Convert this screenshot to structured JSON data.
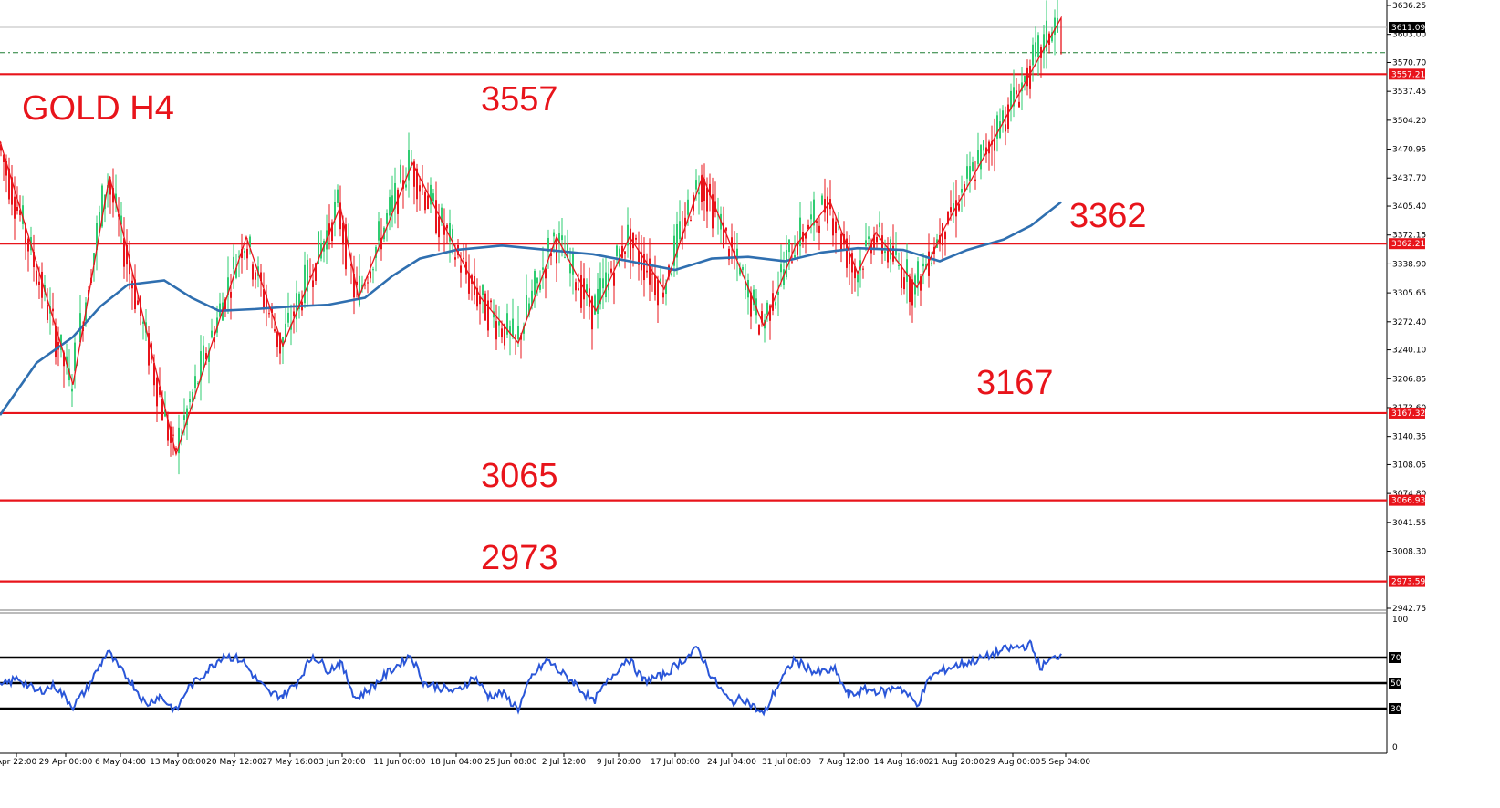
{
  "chart_data": [
    {
      "type": "line",
      "panel": "price",
      "title": "GOLD H4",
      "y_axis": {
        "range": [
          2930,
          3640
        ],
        "tick_labels": [
          "3636.25",
          "3603.00",
          "3570.70",
          "3537.45",
          "3504.20",
          "3470.95",
          "3437.70",
          "3405.40",
          "3372.15",
          "3338.90",
          "3305.65",
          "3272.40",
          "3240.10",
          "3206.85",
          "3173.60",
          "3140.35",
          "3108.05",
          "3074.80",
          "3041.55",
          "3008.30",
          "2942.75"
        ],
        "tick_values": [
          3636.25,
          3603.0,
          3570.7,
          3537.45,
          3504.2,
          3470.95,
          3437.7,
          3405.4,
          3372.15,
          3338.9,
          3305.65,
          3272.4,
          3240.1,
          3206.85,
          3173.6,
          3140.35,
          3108.05,
          3074.8,
          3041.55,
          3008.3,
          2942.75
        ]
      },
      "x_axis": {
        "tick_labels": [
          "Apr 22:00",
          "29 Apr 00:00",
          "6 May 04:00",
          "13 May 08:00",
          "20 May 12:00",
          "27 May 16:00",
          "3 Jun 20:00",
          "11 Jun 00:00",
          "18 Jun 04:00",
          "25 Jun 08:00",
          "2 Jul 12:00",
          "9 Jul 20:00",
          "17 Jul 00:00",
          "24 Jul 04:00",
          "31 Jul 08:00",
          "7 Aug 12:00",
          "14 Aug 16:00",
          "21 Aug 20:00",
          "29 Aug 00:00",
          "5 Sep 04:00"
        ],
        "range": [
          0,
          1200
        ]
      },
      "levels": [
        {
          "label": "3557",
          "value": 3557.21,
          "tag": "3557.21"
        },
        {
          "label": "3362",
          "value": 3362.21,
          "tag": "3362.21"
        },
        {
          "label": "3167",
          "value": 3167.32,
          "tag": "3167.32"
        },
        {
          "label": "3065",
          "value": 3066.93,
          "tag": "3066.93"
        },
        {
          "label": "2973",
          "value": 2973.59,
          "tag": "2973.59"
        }
      ],
      "current_price": {
        "value": 3611.09,
        "tag": "3611.09"
      },
      "dashed_level": 3582,
      "colors": {
        "level": "#e8141b",
        "bull": "#2ecc71",
        "bear": "#e8141b",
        "ma": "#2f6fb0",
        "tag_bg": "#e8141b",
        "current_bg": "#000000"
      },
      "zigzag": [
        {
          "x": 0,
          "y": 3480
        },
        {
          "x": 80,
          "y": 3200
        },
        {
          "x": 120,
          "y": 3440
        },
        {
          "x": 193,
          "y": 3120
        },
        {
          "x": 270,
          "y": 3370
        },
        {
          "x": 310,
          "y": 3245
        },
        {
          "x": 373,
          "y": 3405
        },
        {
          "x": 393,
          "y": 3300
        },
        {
          "x": 452,
          "y": 3455
        },
        {
          "x": 527,
          "y": 3300
        },
        {
          "x": 568,
          "y": 3248
        },
        {
          "x": 610,
          "y": 3370
        },
        {
          "x": 653,
          "y": 3285
        },
        {
          "x": 690,
          "y": 3370
        },
        {
          "x": 728,
          "y": 3310
        },
        {
          "x": 770,
          "y": 3440
        },
        {
          "x": 837,
          "y": 3268
        },
        {
          "x": 872,
          "y": 3360
        },
        {
          "x": 910,
          "y": 3410
        },
        {
          "x": 940,
          "y": 3328
        },
        {
          "x": 960,
          "y": 3375
        },
        {
          "x": 1005,
          "y": 3312
        },
        {
          "x": 1035,
          "y": 3380
        },
        {
          "x": 1163,
          "y": 3622
        },
        {
          "x": 1163,
          "y": 3580
        }
      ],
      "moving_average": [
        {
          "x": 0,
          "y": 3165
        },
        {
          "x": 40,
          "y": 3225
        },
        {
          "x": 80,
          "y": 3255
        },
        {
          "x": 110,
          "y": 3290
        },
        {
          "x": 140,
          "y": 3315
        },
        {
          "x": 180,
          "y": 3320
        },
        {
          "x": 210,
          "y": 3300
        },
        {
          "x": 240,
          "y": 3285
        },
        {
          "x": 280,
          "y": 3287
        },
        {
          "x": 320,
          "y": 3290
        },
        {
          "x": 360,
          "y": 3292
        },
        {
          "x": 400,
          "y": 3300
        },
        {
          "x": 430,
          "y": 3325
        },
        {
          "x": 460,
          "y": 3345
        },
        {
          "x": 500,
          "y": 3355
        },
        {
          "x": 550,
          "y": 3360
        },
        {
          "x": 600,
          "y": 3355
        },
        {
          "x": 650,
          "y": 3350
        },
        {
          "x": 700,
          "y": 3340
        },
        {
          "x": 740,
          "y": 3332
        },
        {
          "x": 780,
          "y": 3345
        },
        {
          "x": 820,
          "y": 3347
        },
        {
          "x": 860,
          "y": 3342
        },
        {
          "x": 900,
          "y": 3352
        },
        {
          "x": 940,
          "y": 3357
        },
        {
          "x": 990,
          "y": 3355
        },
        {
          "x": 1030,
          "y": 3342
        },
        {
          "x": 1060,
          "y": 3355
        },
        {
          "x": 1100,
          "y": 3367
        },
        {
          "x": 1130,
          "y": 3383
        },
        {
          "x": 1163,
          "y": 3410
        }
      ]
    },
    {
      "type": "line",
      "panel": "oscillator",
      "y_axis": {
        "range": [
          0,
          100
        ],
        "tick_labels": [
          "100",
          "0"
        ],
        "tick_values": [
          100,
          0
        ]
      },
      "levels": [
        {
          "value": 70,
          "tag": "70"
        },
        {
          "value": 50,
          "tag": "50"
        },
        {
          "value": 30,
          "tag": "30"
        }
      ],
      "colors": {
        "line": "#2a56d8",
        "level": "#000000"
      },
      "series": [
        {
          "values": [
            {
              "x": 0,
              "y": 47
            },
            {
              "x": 20,
              "y": 54
            },
            {
              "x": 40,
              "y": 43
            },
            {
              "x": 60,
              "y": 48
            },
            {
              "x": 80,
              "y": 32
            },
            {
              "x": 95,
              "y": 45
            },
            {
              "x": 105,
              "y": 58
            },
            {
              "x": 118,
              "y": 75
            },
            {
              "x": 130,
              "y": 62
            },
            {
              "x": 145,
              "y": 50
            },
            {
              "x": 160,
              "y": 33
            },
            {
              "x": 175,
              "y": 40
            },
            {
              "x": 193,
              "y": 28
            },
            {
              "x": 205,
              "y": 45
            },
            {
              "x": 220,
              "y": 55
            },
            {
              "x": 245,
              "y": 72
            },
            {
              "x": 265,
              "y": 68
            },
            {
              "x": 280,
              "y": 54
            },
            {
              "x": 295,
              "y": 42
            },
            {
              "x": 310,
              "y": 40
            },
            {
              "x": 325,
              "y": 50
            },
            {
              "x": 343,
              "y": 72
            },
            {
              "x": 360,
              "y": 60
            },
            {
              "x": 373,
              "y": 66
            },
            {
              "x": 390,
              "y": 38
            },
            {
              "x": 405,
              "y": 45
            },
            {
              "x": 425,
              "y": 58
            },
            {
              "x": 450,
              "y": 72
            },
            {
              "x": 465,
              "y": 50
            },
            {
              "x": 490,
              "y": 45
            },
            {
              "x": 500,
              "y": 43
            },
            {
              "x": 520,
              "y": 55
            },
            {
              "x": 535,
              "y": 40
            },
            {
              "x": 550,
              "y": 42
            },
            {
              "x": 568,
              "y": 30
            },
            {
              "x": 583,
              "y": 55
            },
            {
              "x": 600,
              "y": 68
            },
            {
              "x": 615,
              "y": 58
            },
            {
              "x": 630,
              "y": 50
            },
            {
              "x": 650,
              "y": 35
            },
            {
              "x": 670,
              "y": 55
            },
            {
              "x": 688,
              "y": 70
            },
            {
              "x": 705,
              "y": 52
            },
            {
              "x": 725,
              "y": 55
            },
            {
              "x": 745,
              "y": 66
            },
            {
              "x": 765,
              "y": 77
            },
            {
              "x": 780,
              "y": 55
            },
            {
              "x": 800,
              "y": 35
            },
            {
              "x": 815,
              "y": 38
            },
            {
              "x": 837,
              "y": 25
            },
            {
              "x": 850,
              "y": 45
            },
            {
              "x": 870,
              "y": 68
            },
            {
              "x": 895,
              "y": 58
            },
            {
              "x": 915,
              "y": 60
            },
            {
              "x": 930,
              "y": 40
            },
            {
              "x": 950,
              "y": 45
            },
            {
              "x": 970,
              "y": 43
            },
            {
              "x": 985,
              "y": 48
            },
            {
              "x": 1005,
              "y": 33
            },
            {
              "x": 1020,
              "y": 55
            },
            {
              "x": 1040,
              "y": 62
            },
            {
              "x": 1060,
              "y": 66
            },
            {
              "x": 1080,
              "y": 70
            },
            {
              "x": 1100,
              "y": 76
            },
            {
              "x": 1115,
              "y": 78
            },
            {
              "x": 1130,
              "y": 80
            },
            {
              "x": 1140,
              "y": 62
            },
            {
              "x": 1150,
              "y": 67
            },
            {
              "x": 1163,
              "y": 73
            }
          ]
        }
      ]
    }
  ]
}
